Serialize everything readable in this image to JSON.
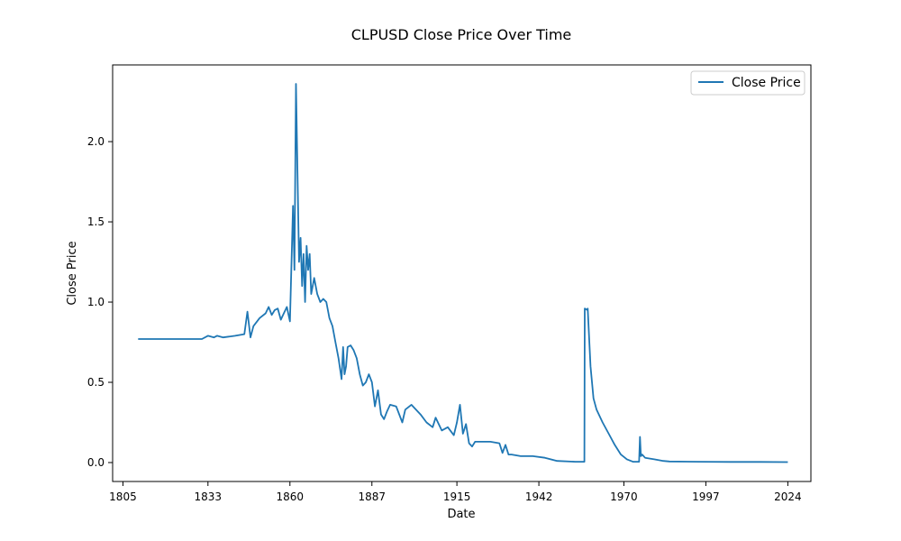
{
  "chart_data": {
    "type": "line",
    "title": "CLPUSD Close Price Over Time",
    "xlabel": "Date",
    "ylabel": "Close Price",
    "xlim": [
      1801.6,
      2031.6
    ],
    "ylim": [
      -0.118,
      2.478
    ],
    "x_ticks": [
      1805,
      1833,
      1860,
      1887,
      1915,
      1942,
      1970,
      1997,
      2024
    ],
    "x_tick_labels": [
      "1805",
      "1833",
      "1860",
      "1887",
      "1915",
      "1942",
      "1970",
      "1997",
      "2024"
    ],
    "y_ticks": [
      0.0,
      0.5,
      1.0,
      1.5,
      2.0
    ],
    "y_tick_labels": [
      "0.0",
      "0.5",
      "1.0",
      "1.5",
      "2.0"
    ],
    "grid": false,
    "legend": {
      "placement": "top-right",
      "entries": [
        "Close Price"
      ]
    },
    "series": [
      {
        "name": "Close Price",
        "color": "#1f77b4",
        "x": [
          1810,
          1831,
          1833,
          1835,
          1836,
          1838,
          1842,
          1845,
          1846,
          1847,
          1848,
          1850,
          1852,
          1853,
          1854,
          1855,
          1856,
          1857,
          1858,
          1859,
          1860,
          1861,
          1861.5,
          1862,
          1862.5,
          1863,
          1863.5,
          1864,
          1864.5,
          1865,
          1865.5,
          1866,
          1866.5,
          1867,
          1868,
          1869,
          1870,
          1871,
          1872,
          1873,
          1874,
          1875,
          1876,
          1877,
          1877.5,
          1878,
          1878.5,
          1879,
          1880,
          1881,
          1882,
          1883,
          1884,
          1885,
          1886,
          1887,
          1888,
          1889,
          1890,
          1891,
          1892,
          1893,
          1895,
          1897,
          1898,
          1900,
          1903,
          1905,
          1907,
          1908,
          1910,
          1912,
          1914,
          1915,
          1916,
          1917,
          1918,
          1919,
          1920,
          1921,
          1923,
          1926,
          1929,
          1930,
          1931,
          1932,
          1933,
          1936,
          1940,
          1944,
          1948,
          1954,
          1957,
          1957.1,
          1958,
          1958.1,
          1959,
          1960,
          1961,
          1963,
          1965,
          1967,
          1969,
          1971,
          1973,
          1975,
          1975.3,
          1975.6,
          1976,
          1977,
          1980,
          1983,
          1985,
          1995,
          2005,
          2015,
          2024
        ],
        "values": [
          0.77,
          0.77,
          0.79,
          0.78,
          0.79,
          0.78,
          0.79,
          0.8,
          0.94,
          0.78,
          0.85,
          0.9,
          0.93,
          0.97,
          0.92,
          0.95,
          0.96,
          0.89,
          0.93,
          0.97,
          0.88,
          1.6,
          1.2,
          2.36,
          1.8,
          1.25,
          1.4,
          1.1,
          1.3,
          1.0,
          1.35,
          1.2,
          1.3,
          1.05,
          1.15,
          1.05,
          1.0,
          1.02,
          1.0,
          0.9,
          0.85,
          0.75,
          0.65,
          0.52,
          0.72,
          0.55,
          0.6,
          0.72,
          0.73,
          0.7,
          0.65,
          0.55,
          0.48,
          0.5,
          0.55,
          0.5,
          0.35,
          0.45,
          0.3,
          0.27,
          0.32,
          0.36,
          0.35,
          0.25,
          0.33,
          0.36,
          0.3,
          0.25,
          0.22,
          0.28,
          0.2,
          0.22,
          0.17,
          0.25,
          0.36,
          0.18,
          0.24,
          0.12,
          0.1,
          0.13,
          0.13,
          0.13,
          0.12,
          0.06,
          0.11,
          0.05,
          0.05,
          0.04,
          0.04,
          0.03,
          0.01,
          0.005,
          0.005,
          0.96,
          0.95,
          0.96,
          0.6,
          0.4,
          0.33,
          0.25,
          0.18,
          0.11,
          0.05,
          0.02,
          0.005,
          0.005,
          0.16,
          0.04,
          0.05,
          0.03,
          0.02,
          0.01,
          0.007,
          0.005,
          0.004,
          0.004,
          0.003
        ]
      }
    ]
  }
}
